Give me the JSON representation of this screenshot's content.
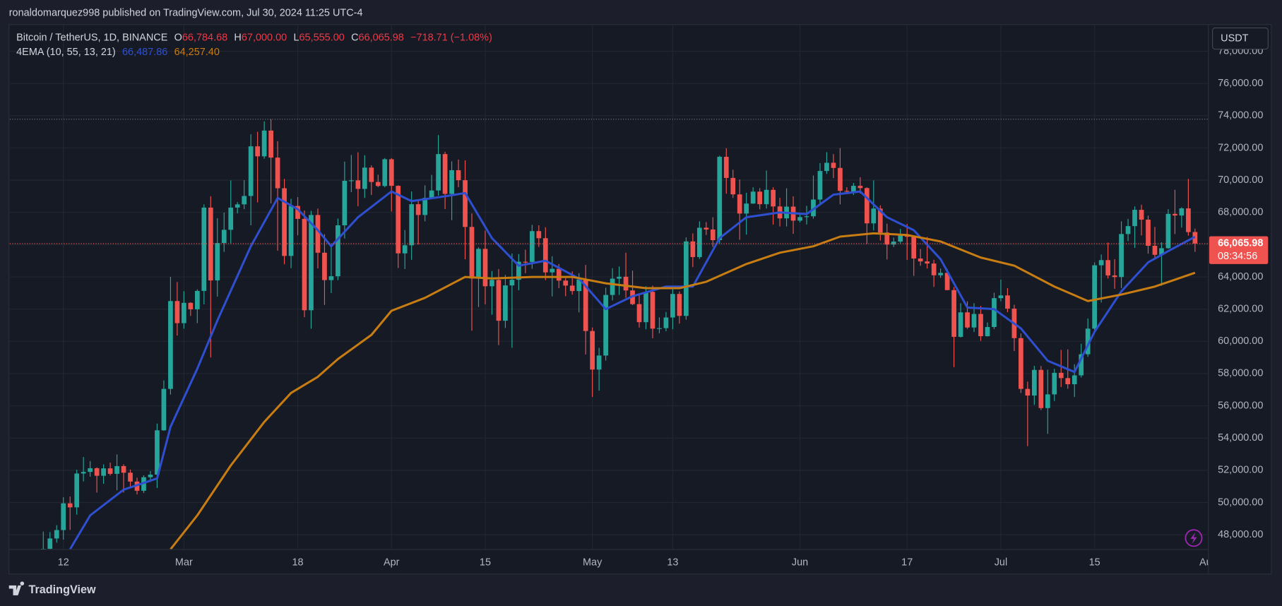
{
  "attribution": "ronaldomarquez998 published on TradingView.com, Jul 30, 2024 11:25 UTC-4",
  "brand": "TradingView",
  "chart_data": {
    "type": "candlestick",
    "title": "Bitcoin / TetherUS, 1D, BINANCE",
    "ohlc_legend": [
      {
        "key": "O",
        "value_label": "66,784.68"
      },
      {
        "key": "H",
        "value_label": "67,000.00"
      },
      {
        "key": "L",
        "value_label": "65,555.00"
      },
      {
        "key": "C",
        "value_label": "66,065.98"
      }
    ],
    "change_label": "−718.71 (−1.08%)",
    "currency": "USDT",
    "last_price_label": "66,065.98",
    "countdown": "08:34:56",
    "up_color": "#26a69a",
    "down_color": "#ef5350",
    "reference_line": 73780,
    "x": [
      "2024-02-09",
      "2024-02-10",
      "2024-02-11",
      "2024-02-12",
      "2024-02-13",
      "2024-02-14",
      "2024-02-15",
      "2024-02-16",
      "2024-02-17",
      "2024-02-18",
      "2024-02-19",
      "2024-02-20",
      "2024-02-21",
      "2024-02-22",
      "2024-02-23",
      "2024-02-24",
      "2024-02-25",
      "2024-02-26",
      "2024-02-27",
      "2024-02-28",
      "2024-02-29",
      "2024-03-01",
      "2024-03-02",
      "2024-03-03",
      "2024-03-04",
      "2024-03-05",
      "2024-03-06",
      "2024-03-07",
      "2024-03-08",
      "2024-03-09",
      "2024-03-10",
      "2024-03-11",
      "2024-03-12",
      "2024-03-13",
      "2024-03-14",
      "2024-03-15",
      "2024-03-16",
      "2024-03-17",
      "2024-03-18",
      "2024-03-19",
      "2024-03-20",
      "2024-03-21",
      "2024-03-22",
      "2024-03-23",
      "2024-03-24",
      "2024-03-25",
      "2024-03-26",
      "2024-03-27",
      "2024-03-28",
      "2024-03-29",
      "2024-03-30",
      "2024-03-31",
      "2024-04-01",
      "2024-04-02",
      "2024-04-03",
      "2024-04-04",
      "2024-04-05",
      "2024-04-06",
      "2024-04-07",
      "2024-04-08",
      "2024-04-09",
      "2024-04-10",
      "2024-04-11",
      "2024-04-12",
      "2024-04-13",
      "2024-04-14",
      "2024-04-15",
      "2024-04-16",
      "2024-04-17",
      "2024-04-18",
      "2024-04-19",
      "2024-04-20",
      "2024-04-21",
      "2024-04-22",
      "2024-04-23",
      "2024-04-24",
      "2024-04-25",
      "2024-04-26",
      "2024-04-27",
      "2024-04-28",
      "2024-04-29",
      "2024-04-30",
      "2024-05-01",
      "2024-05-02",
      "2024-05-03",
      "2024-05-04",
      "2024-05-05",
      "2024-05-06",
      "2024-05-07",
      "2024-05-08",
      "2024-05-09",
      "2024-05-10",
      "2024-05-11",
      "2024-05-12",
      "2024-05-13",
      "2024-05-14",
      "2024-05-15",
      "2024-05-16",
      "2024-05-17",
      "2024-05-18",
      "2024-05-19",
      "2024-05-20",
      "2024-05-21",
      "2024-05-22",
      "2024-05-23",
      "2024-05-24",
      "2024-05-25",
      "2024-05-26",
      "2024-05-27",
      "2024-05-28",
      "2024-05-29",
      "2024-05-30",
      "2024-05-31",
      "2024-06-01",
      "2024-06-02",
      "2024-06-03",
      "2024-06-04",
      "2024-06-05",
      "2024-06-06",
      "2024-06-07",
      "2024-06-08",
      "2024-06-09",
      "2024-06-10",
      "2024-06-11",
      "2024-06-12",
      "2024-06-13",
      "2024-06-14",
      "2024-06-15",
      "2024-06-16",
      "2024-06-17",
      "2024-06-18",
      "2024-06-19",
      "2024-06-20",
      "2024-06-21",
      "2024-06-22",
      "2024-06-23",
      "2024-06-24",
      "2024-06-25",
      "2024-06-26",
      "2024-06-27",
      "2024-06-28",
      "2024-06-29",
      "2024-06-30",
      "2024-07-01",
      "2024-07-02",
      "2024-07-03",
      "2024-07-04",
      "2024-07-05",
      "2024-07-06",
      "2024-07-07",
      "2024-07-08",
      "2024-07-09",
      "2024-07-10",
      "2024-07-11",
      "2024-07-12",
      "2024-07-13",
      "2024-07-14",
      "2024-07-15",
      "2024-07-16",
      "2024-07-17",
      "2024-07-18",
      "2024-07-19",
      "2024-07-20",
      "2024-07-21",
      "2024-07-22",
      "2024-07-23",
      "2024-07-24",
      "2024-07-25",
      "2024-07-26",
      "2024-07-27",
      "2024-07-28",
      "2024-07-29",
      "2024-07-30"
    ],
    "open": [
      45300,
      47130,
      47770,
      48290,
      49950,
      49700,
      51800,
      51900,
      52130,
      51660,
      52120,
      51780,
      52260,
      51850,
      51300,
      50730,
      51570,
      51730,
      54480,
      57050,
      62500,
      61130,
      62390,
      61990,
      63130,
      68300,
      63780,
      66100,
      66920,
      68300,
      68500,
      69020,
      72100,
      71480,
      73080,
      71400,
      69500,
      65300,
      68400,
      67600,
      61930,
      67840,
      65500,
      63800,
      64040,
      67200,
      69960,
      69990,
      69460,
      70780,
      69890,
      69640,
      71300,
      69650,
      65460,
      65960,
      68510,
      67840,
      68900,
      69360,
      71620,
      69150,
      70620,
      70000,
      67100,
      63900,
      65740,
      63420,
      63810,
      61280,
      63470,
      63820,
      64940,
      64930,
      66840,
      66400,
      64280,
      64500,
      63770,
      63460,
      63120,
      63840,
      60640,
      58250,
      59120,
      62880,
      63890,
      64010,
      63160,
      62310,
      61190,
      63070,
      60790,
      60820,
      61480,
      62940,
      61580,
      66200,
      65230,
      67050,
      66940,
      66280,
      71450,
      70140,
      69120,
      67930,
      68550,
      69290,
      68510,
      69400,
      68370,
      67630,
      68360,
      67490,
      67710,
      67760,
      68800,
      70570,
      71080,
      70760,
      69340,
      69300,
      69650,
      69510,
      67320,
      68240,
      66750,
      66010,
      66190,
      66640,
      66490,
      65140,
      64960,
      64830,
      64100,
      64250,
      63180,
      60280,
      61800,
      60860,
      61700,
      60320,
      60890,
      62680,
      62850,
      62030,
      60200,
      57050,
      56640,
      58230,
      55860,
      56710,
      58050,
      57720,
      57340,
      57890,
      59200,
      60790,
      64720,
      65040,
      64090,
      63990,
      66660,
      67150,
      68160,
      67550,
      65930,
      65370,
      65780,
      67910,
      67810,
      68250,
      66784.68
    ],
    "high": [
      48200,
      48170,
      48590,
      50330,
      50370,
      52040,
      52820,
      52570,
      52180,
      52370,
      52480,
      52980,
      52370,
      52050,
      51540,
      51690,
      51950,
      54900,
      57580,
      64000,
      63680,
      63110,
      62430,
      63230,
      68500,
      69000,
      67640,
      67990,
      69990,
      68640,
      70000,
      72850,
      73000,
      73650,
      73780,
      72420,
      70080,
      68850,
      68950,
      68120,
      68100,
      68240,
      66650,
      65970,
      67620,
      71150,
      71560,
      71730,
      71550,
      70920,
      70340,
      71370,
      71370,
      69680,
      66910,
      69300,
      68720,
      69680,
      70330,
      72800,
      71760,
      71170,
      71280,
      71230,
      67940,
      65840,
      66870,
      64360,
      64490,
      64120,
      65450,
      65420,
      65690,
      67230,
      67200,
      67080,
      65280,
      64800,
      63920,
      64340,
      64230,
      64740,
      60860,
      59600,
      63330,
      64540,
      64650,
      65500,
      64390,
      62970,
      63420,
      63460,
      61490,
      61820,
      63450,
      63100,
      66450,
      66700,
      67450,
      67400,
      67700,
      71520,
      71980,
      70650,
      70040,
      69220,
      69560,
      69510,
      70600,
      69560,
      68900,
      69500,
      69000,
      67860,
      68410,
      70290,
      71060,
      71740,
      71620,
      71990,
      69560,
      69830,
      70180,
      69560,
      69990,
      68440,
      67300,
      66440,
      66980,
      67280,
      66530,
      65730,
      66480,
      65060,
      64520,
      64490,
      63370,
      62370,
      62480,
      62370,
      62200,
      61170,
      63020,
      63830,
      63300,
      62270,
      60490,
      57500,
      58480,
      58470,
      58240,
      58300,
      59470,
      59500,
      58580,
      59850,
      61420,
      64900,
      65390,
      66130,
      65100,
      67450,
      67600,
      68370,
      68480,
      67800,
      67100,
      66150,
      68200,
      69400,
      68320,
      70080,
      67000
    ],
    "low": [
      45240,
      46800,
      47510,
      47700,
      48300,
      49250,
      51310,
      51600,
      50620,
      51160,
      51680,
      50760,
      50620,
      50930,
      50500,
      50590,
      51280,
      50900,
      54450,
      56700,
      60360,
      60790,
      61580,
      61130,
      62300,
      59000,
      62780,
      65550,
      66080,
      67940,
      68200,
      67200,
      68620,
      71330,
      68560,
      65630,
      64780,
      64540,
      66580,
      61500,
      60780,
      64530,
      62260,
      63000,
      63800,
      66380,
      69260,
      68380,
      68900,
      69080,
      69570,
      69560,
      68060,
      64550,
      64490,
      65060,
      66010,
      67450,
      68850,
      69040,
      68210,
      67520,
      69560,
      65090,
      60660,
      62130,
      62300,
      61650,
      59770,
      60830,
      59600,
      63170,
      64230,
      64500,
      65860,
      63800,
      62790,
      63300,
      62800,
      62900,
      61800,
      59190,
      56550,
      56940,
      58810,
      62540,
      62880,
      62700,
      62250,
      60860,
      60750,
      60190,
      60500,
      60630,
      60750,
      61100,
      61340,
      64610,
      65110,
      66600,
      65860,
      66060,
      69160,
      68900,
      66300,
      66620,
      68530,
      68190,
      68240,
      67240,
      67130,
      67130,
      66670,
      67380,
      67250,
      67610,
      68560,
      70390,
      70130,
      68500,
      69130,
      69080,
      69170,
      66050,
      66880,
      66250,
      65080,
      65850,
      66050,
      65050,
      64060,
      64690,
      64520,
      63380,
      63940,
      63180,
      58400,
      60240,
      60770,
      60580,
      60030,
      60300,
      60760,
      62490,
      61810,
      59400,
      56800,
      53500,
      56060,
      55740,
      54260,
      56300,
      57160,
      57060,
      56550,
      57760,
      59040,
      60630,
      62410,
      63900,
      63260,
      63300,
      66220,
      65800,
      66570,
      65440,
      65110,
      63450,
      65750,
      66660,
      67060,
      66560,
      65555
    ],
    "close": [
      47130,
      47770,
      48290,
      49950,
      49700,
      51800,
      51900,
      52130,
      51660,
      52120,
      51780,
      52260,
      51850,
      51300,
      50730,
      51570,
      51730,
      54480,
      57050,
      62500,
      61130,
      62390,
      61990,
      63130,
      68300,
      63780,
      66100,
      66920,
      68300,
      68500,
      69020,
      72100,
      71480,
      73080,
      71400,
      69500,
      65300,
      68400,
      67600,
      61930,
      67840,
      65500,
      63800,
      64040,
      67200,
      69960,
      69990,
      69460,
      70780,
      69890,
      69640,
      71300,
      69650,
      65460,
      65960,
      68510,
      67840,
      68900,
      69360,
      71620,
      69150,
      70620,
      70000,
      67100,
      63900,
      65740,
      63420,
      63810,
      61280,
      63470,
      63820,
      64940,
      64930,
      66840,
      66400,
      64280,
      64500,
      63770,
      63460,
      63120,
      63840,
      60640,
      58250,
      59120,
      62880,
      63890,
      64010,
      63160,
      62310,
      61190,
      63070,
      60790,
      60820,
      61480,
      62940,
      61580,
      66200,
      65230,
      67050,
      66940,
      66280,
      71450,
      70140,
      69120,
      67930,
      68550,
      69290,
      68510,
      69400,
      68370,
      67630,
      68360,
      67490,
      67710,
      67760,
      68800,
      70570,
      71080,
      70760,
      69340,
      69300,
      69650,
      69510,
      67320,
      68240,
      66750,
      66010,
      66190,
      66640,
      66490,
      65140,
      64960,
      64830,
      64100,
      64250,
      63180,
      60280,
      61800,
      60860,
      61700,
      60320,
      60890,
      62680,
      62850,
      62030,
      60200,
      57050,
      56640,
      58230,
      55860,
      56710,
      58050,
      57720,
      57340,
      57890,
      59200,
      60790,
      64720,
      65040,
      64090,
      63990,
      66660,
      67150,
      68160,
      67550,
      65930,
      65370,
      65780,
      67910,
      67810,
      68250,
      66780,
      66065.98
    ],
    "ema": {
      "title": "4EMA (10, 55, 13, 21)",
      "series": [
        {
          "color": "#2f4fd1",
          "value_label": "66,487.86",
          "x": [
            "2024-02-13",
            "2024-02-16",
            "2024-02-21",
            "2024-02-26",
            "2024-02-28",
            "2024-03-03",
            "2024-03-06",
            "2024-03-11",
            "2024-03-15",
            "2024-03-18",
            "2024-03-21",
            "2024-03-23",
            "2024-03-27",
            "2024-04-01",
            "2024-04-04",
            "2024-04-09",
            "2024-04-12",
            "2024-04-16",
            "2024-04-20",
            "2024-04-24",
            "2024-04-29",
            "2024-05-03",
            "2024-05-07",
            "2024-05-12",
            "2024-05-16",
            "2024-05-20",
            "2024-05-24",
            "2024-05-29",
            "2024-06-02",
            "2024-06-06",
            "2024-06-10",
            "2024-06-14",
            "2024-06-18",
            "2024-06-22",
            "2024-06-26",
            "2024-06-30",
            "2024-07-04",
            "2024-07-08",
            "2024-07-12",
            "2024-07-15",
            "2024-07-19",
            "2024-07-23",
            "2024-07-26",
            "2024-07-30"
          ],
          "values": [
            47100,
            49200,
            50800,
            51500,
            54700,
            58300,
            61300,
            65900,
            68900,
            68200,
            66900,
            65900,
            67700,
            69300,
            68700,
            69000,
            69200,
            66400,
            64700,
            65000,
            63900,
            62000,
            62800,
            63400,
            63400,
            66400,
            67700,
            68000,
            67900,
            69100,
            69300,
            67700,
            66900,
            65100,
            62100,
            62000,
            60800,
            58800,
            58100,
            60600,
            63100,
            64900,
            65600,
            66487.86
          ]
        },
        {
          "color": "#c87d12",
          "value_label": "64,257.40",
          "x": [
            "2024-02-28",
            "2024-03-03",
            "2024-03-08",
            "2024-03-13",
            "2024-03-17",
            "2024-03-21",
            "2024-03-24",
            "2024-03-29",
            "2024-04-01",
            "2024-04-06",
            "2024-04-12",
            "2024-04-16",
            "2024-04-22",
            "2024-04-28",
            "2024-05-03",
            "2024-05-09",
            "2024-05-14",
            "2024-05-18",
            "2024-05-24",
            "2024-05-29",
            "2024-06-03",
            "2024-06-07",
            "2024-06-12",
            "2024-06-17",
            "2024-06-22",
            "2024-06-28",
            "2024-07-03",
            "2024-07-09",
            "2024-07-14",
            "2024-07-19",
            "2024-07-24",
            "2024-07-30"
          ],
          "values": [
            47100,
            49200,
            52300,
            55000,
            56800,
            57800,
            58900,
            60400,
            61900,
            62700,
            64000,
            63900,
            64000,
            64000,
            63600,
            63300,
            63300,
            63700,
            64800,
            65500,
            65900,
            66500,
            66700,
            66600,
            66200,
            65200,
            64700,
            63400,
            62500,
            62900,
            63400,
            64257.4
          ]
        }
      ]
    },
    "xlim": [
      "2024-02-04",
      "2024-08-01"
    ],
    "xticks": [
      {
        "value": "2024-02-12",
        "label": "12"
      },
      {
        "value": "2024-03-01",
        "label": "Mar"
      },
      {
        "value": "2024-03-18",
        "label": "18"
      },
      {
        "value": "2024-04-01",
        "label": "Apr"
      },
      {
        "value": "2024-04-15",
        "label": "15"
      },
      {
        "value": "2024-05-01",
        "label": "May"
      },
      {
        "value": "2024-05-13",
        "label": "13"
      },
      {
        "value": "2024-06-01",
        "label": "Jun"
      },
      {
        "value": "2024-06-17",
        "label": "17"
      },
      {
        "value": "2024-07-01",
        "label": "Jul"
      },
      {
        "value": "2024-07-15",
        "label": "15"
      },
      {
        "value": "2024-08-01",
        "label": "Aug"
      }
    ],
    "ylim": [
      47086,
      79652
    ],
    "yticks": [
      {
        "value": 48000,
        "label": "48,000.00"
      },
      {
        "value": 50000,
        "label": "50,000.00"
      },
      {
        "value": 52000,
        "label": "52,000.00"
      },
      {
        "value": 54000,
        "label": "54,000.00"
      },
      {
        "value": 56000,
        "label": "56,000.00"
      },
      {
        "value": 58000,
        "label": "58,000.00"
      },
      {
        "value": 60000,
        "label": "60,000.00"
      },
      {
        "value": 62000,
        "label": "62,000.00"
      },
      {
        "value": 64000,
        "label": "64,000.00"
      },
      {
        "value": 66000,
        "label": "66,000.00"
      },
      {
        "value": 68000,
        "label": "68,000.00"
      },
      {
        "value": 70000,
        "label": "70,000.00"
      },
      {
        "value": 72000,
        "label": "72,000.00"
      },
      {
        "value": 74000,
        "label": "74,000.00"
      },
      {
        "value": 76000,
        "label": "76,000.00"
      },
      {
        "value": 78000,
        "label": "78,000.00"
      }
    ],
    "grid": true
  }
}
